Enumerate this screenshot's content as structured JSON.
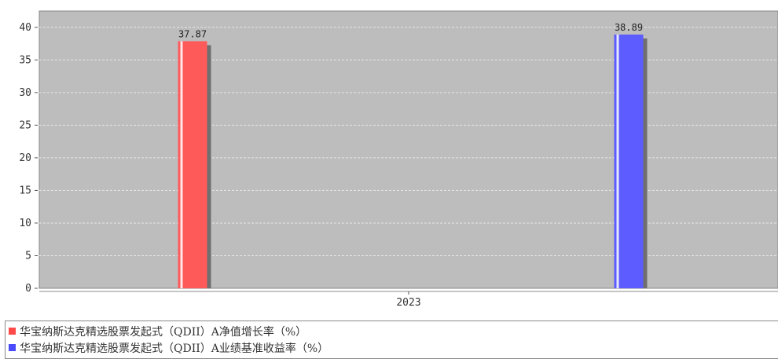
{
  "chart_data": {
    "type": "bar",
    "categories": [
      "2023"
    ],
    "series": [
      {
        "name": "华宝纳斯达克精选股票发起式（QDII）A净值增长率（%）",
        "values": [
          37.87
        ],
        "color": "#ff5a5a",
        "value_label": "37.87"
      },
      {
        "name": "华宝纳斯达克精选股票发起式（QDII）A业绩基准收益率（%）",
        "values": [
          38.89
        ],
        "color": "#5c5cff",
        "value_label": "38.89"
      }
    ],
    "yticks": [
      "0",
      "5",
      "10",
      "15",
      "20",
      "25",
      "30",
      "35",
      "40"
    ],
    "ylim": [
      0,
      42.5
    ],
    "grid": true,
    "plot_background": "#bdbdbd",
    "legend_position": "bottom"
  }
}
